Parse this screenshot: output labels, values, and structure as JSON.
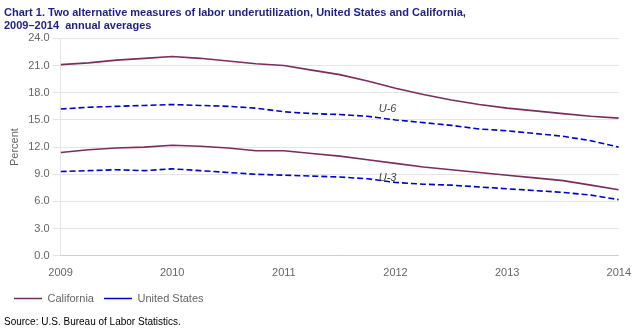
{
  "chart_data": {
    "type": "line",
    "title": [
      "Chart 1. Two alternative measures of labor underutilization, United States and California,",
      "2009–2014  annual averages"
    ],
    "ylabel": "Percent",
    "source": "Source: U.S. Bureau of Labor Statistics.",
    "x": [
      2009,
      2009.25,
      2009.5,
      2009.75,
      2010,
      2010.25,
      2010.5,
      2010.75,
      2011,
      2011.25,
      2011.5,
      2011.75,
      2012,
      2012.25,
      2012.5,
      2012.75,
      2013,
      2013.25,
      2013.5,
      2013.75,
      2014
    ],
    "series": [
      {
        "name": "California",
        "color": "#7b2d5e",
        "line_style": "solid",
        "values": [
          21.1,
          21.3,
          21.6,
          21.8,
          22.0,
          21.8,
          21.5,
          21.2,
          21.0,
          20.5,
          20.0,
          19.3,
          18.5,
          17.8,
          17.2,
          16.7,
          16.3,
          16.0,
          15.7,
          15.4,
          15.2
        ]
      },
      {
        "name": "United States",
        "color": "#0000cc",
        "line_style": "dashed",
        "values": [
          16.2,
          16.4,
          16.5,
          16.6,
          16.7,
          16.6,
          16.5,
          16.3,
          15.9,
          15.7,
          15.6,
          15.4,
          15.0,
          14.7,
          14.4,
          14.0,
          13.8,
          13.5,
          13.2,
          12.7,
          12.0
        ]
      },
      {
        "name": "California",
        "color": "#7b2d5e",
        "line_style": "solid",
        "values": [
          11.4,
          11.7,
          11.9,
          12.0,
          12.2,
          12.1,
          11.9,
          11.6,
          11.6,
          11.3,
          11.0,
          10.6,
          10.2,
          9.8,
          9.5,
          9.2,
          8.9,
          8.6,
          8.3,
          7.8,
          7.3
        ]
      },
      {
        "name": "United States",
        "color": "#0000cc",
        "line_style": "dashed",
        "values": [
          9.3,
          9.4,
          9.5,
          9.4,
          9.6,
          9.4,
          9.2,
          9.0,
          8.9,
          8.8,
          8.7,
          8.5,
          8.1,
          7.9,
          7.8,
          7.6,
          7.4,
          7.2,
          7.0,
          6.7,
          6.2
        ]
      }
    ],
    "annotations": [
      {
        "text": "U-6",
        "x": 2011.85,
        "y": 16.2
      },
      {
        "text": "U-3",
        "x": 2011.85,
        "y": 8.6
      }
    ],
    "xlim": [
      2009,
      2014
    ],
    "xticks": [
      2009,
      2010,
      2011,
      2012,
      2013,
      2014
    ],
    "ylim": [
      0.0,
      24.0
    ],
    "yticks": [
      {
        "value": 0.0,
        "label": "0.0"
      },
      {
        "value": 3.0,
        "label": "3.0"
      },
      {
        "value": 6.0,
        "label": "6.0"
      },
      {
        "value": 9.0,
        "label": "9.0"
      },
      {
        "value": 12.0,
        "label": "12.0"
      },
      {
        "value": 15.0,
        "label": "15.0"
      },
      {
        "value": 18.0,
        "label": "18.0"
      },
      {
        "value": 21.0,
        "label": "21.0"
      },
      {
        "value": 24.0,
        "label": "24.0"
      }
    ],
    "grid": "y",
    "legend": "bottom"
  }
}
